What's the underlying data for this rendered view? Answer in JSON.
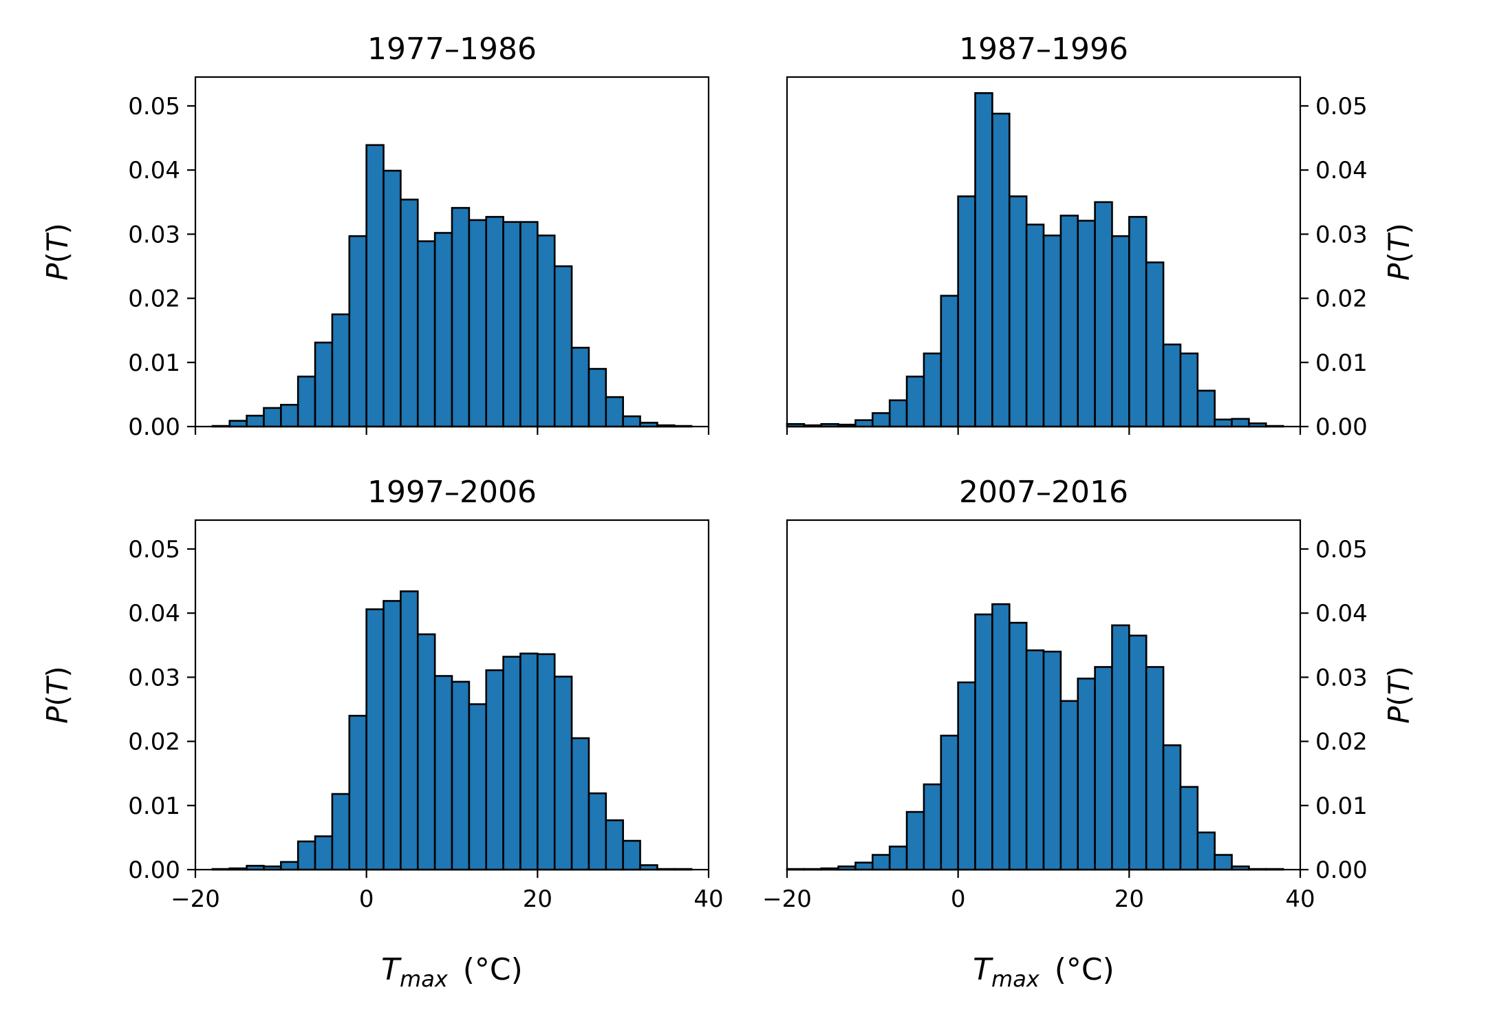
{
  "figure": {
    "bar_color": "#1f77b4",
    "edge_color": "#000000",
    "shared_xlabel": "T_max (°C)"
  },
  "chart_data": [
    {
      "type": "bar",
      "title": "1977–1986",
      "xlabel": "",
      "ylabel": "P(T)",
      "ylabel_side": "left",
      "xlim": [
        -20,
        40
      ],
      "ylim": [
        0,
        0.0545
      ],
      "xticks": [
        "−20",
        "0",
        "20",
        "40"
      ],
      "xticklabels_shown": false,
      "yticks": [
        "0.00",
        "0.01",
        "0.02",
        "0.03",
        "0.04",
        "0.05"
      ],
      "bin_edges_start": -18,
      "bin_width": 2,
      "values": [
        0.0001,
        0.0009,
        0.0017,
        0.0029,
        0.0034,
        0.0078,
        0.0131,
        0.0175,
        0.0297,
        0.0439,
        0.0399,
        0.0354,
        0.0289,
        0.0302,
        0.0341,
        0.0322,
        0.0327,
        0.0319,
        0.0319,
        0.0298,
        0.025,
        0.0123,
        0.009,
        0.0046,
        0.0016,
        0.0006,
        0.0002,
        0.0001
      ]
    },
    {
      "type": "bar",
      "title": "1987–1996",
      "xlabel": "",
      "ylabel": "P(T)",
      "ylabel_side": "right",
      "xlim": [
        -20,
        40
      ],
      "ylim": [
        0,
        0.0545
      ],
      "xticks": [
        "−20",
        "0",
        "20",
        "40"
      ],
      "xticklabels_shown": false,
      "yticks": [
        "0.00",
        "0.01",
        "0.02",
        "0.03",
        "0.04",
        "0.05"
      ],
      "bin_edges_start": -20,
      "bin_width": 2,
      "values": [
        0.0004,
        0.0002,
        0.0004,
        0.0003,
        0.001,
        0.0021,
        0.0041,
        0.0078,
        0.0114,
        0.0204,
        0.0359,
        0.052,
        0.0488,
        0.0359,
        0.0315,
        0.0298,
        0.0329,
        0.0321,
        0.035,
        0.0297,
        0.0327,
        0.0256,
        0.0128,
        0.0114,
        0.0056,
        0.0011,
        0.0012,
        0.0005,
        0.0001
      ]
    },
    {
      "type": "bar",
      "title": "1997–2006",
      "xlabel": "T_max (°C)",
      "ylabel": "P(T)",
      "ylabel_side": "left",
      "xlim": [
        -20,
        40
      ],
      "ylim": [
        0,
        0.0545
      ],
      "xticks": [
        "−20",
        "0",
        "20",
        "40"
      ],
      "xticklabels_shown": true,
      "yticks": [
        "0.00",
        "0.01",
        "0.02",
        "0.03",
        "0.04",
        "0.05"
      ],
      "bin_edges_start": -18,
      "bin_width": 2,
      "values": [
        0.0001,
        0.0002,
        0.0006,
        0.0005,
        0.0012,
        0.0044,
        0.0052,
        0.0118,
        0.024,
        0.0406,
        0.0419,
        0.0434,
        0.0367,
        0.0302,
        0.0293,
        0.0258,
        0.0311,
        0.0332,
        0.0337,
        0.0336,
        0.0301,
        0.0205,
        0.0119,
        0.0077,
        0.0045,
        0.0007,
        0.0001,
        0.0001
      ]
    },
    {
      "type": "bar",
      "title": "2007–2016",
      "xlabel": "T_max (°C)",
      "ylabel": "P(T)",
      "ylabel_side": "right",
      "xlim": [
        -20,
        40
      ],
      "ylim": [
        0,
        0.0545
      ],
      "xticks": [
        "−20",
        "0",
        "20",
        "40"
      ],
      "xticklabels_shown": true,
      "yticks": [
        "0.00",
        "0.01",
        "0.02",
        "0.03",
        "0.04",
        "0.05"
      ],
      "bin_edges_start": -20,
      "bin_width": 2,
      "values": [
        0.0001,
        0.0001,
        0.0002,
        0.0005,
        0.0011,
        0.0023,
        0.0036,
        0.009,
        0.0133,
        0.0209,
        0.0292,
        0.0398,
        0.0414,
        0.0385,
        0.0342,
        0.034,
        0.0263,
        0.0298,
        0.0316,
        0.0381,
        0.0365,
        0.0316,
        0.0194,
        0.0129,
        0.0058,
        0.0023,
        0.0005,
        0.0001,
        0.0001
      ]
    }
  ]
}
